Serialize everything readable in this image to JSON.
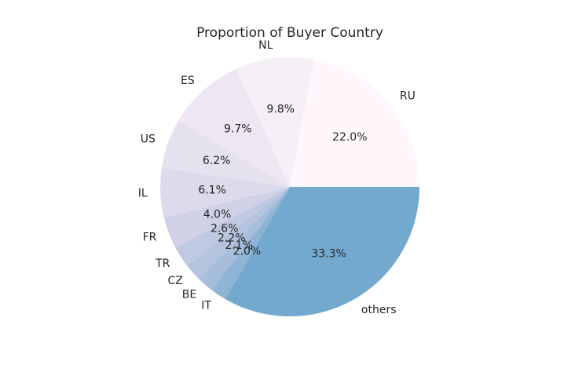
{
  "chart_data": {
    "type": "pie",
    "title": "Proportion of Buyer Country",
    "categories": [
      "RU",
      "NL",
      "ES",
      "US",
      "IL",
      "FR",
      "TR",
      "CZ",
      "BE",
      "IT",
      "others"
    ],
    "values": [
      22.0,
      9.8,
      9.7,
      6.2,
      6.1,
      4.0,
      2.6,
      2.2,
      2.1,
      2.0,
      33.3
    ],
    "value_labels": [
      "22.0%",
      "9.8%",
      "9.7%",
      "6.2%",
      "6.1%",
      "4.0%",
      "2.6%",
      "2.2%",
      "2.1%",
      "2.0%",
      "33.3%"
    ],
    "colors": [
      "#fff7fb",
      "#f5eff6",
      "#ece7f2",
      "#e5e1ef",
      "#dcdaeb",
      "#d0d1e6",
      "#bfc9e1",
      "#b4c4df",
      "#a6bddb",
      "#8fb4d6",
      "#74a9cf"
    ]
  }
}
